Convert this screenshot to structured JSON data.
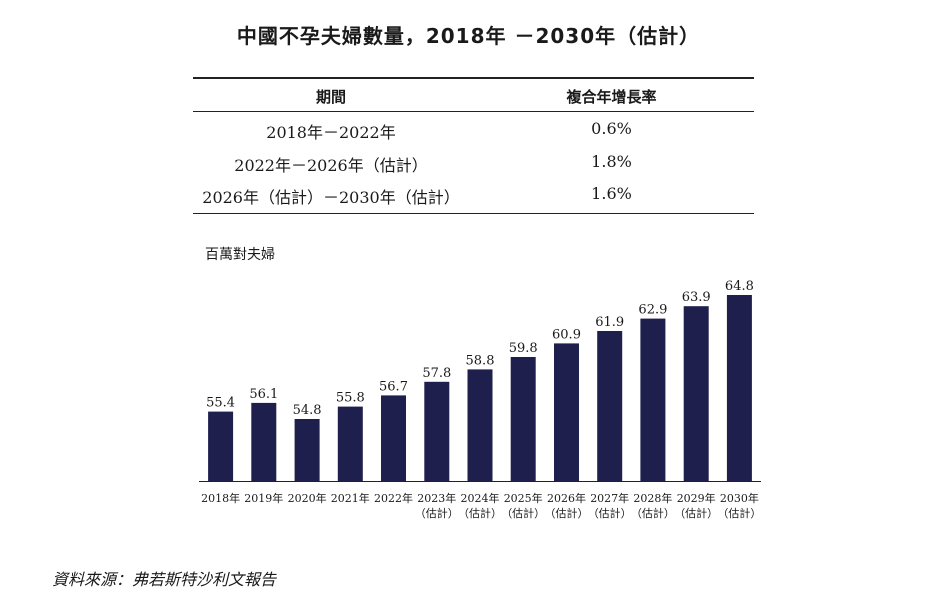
{
  "title": "中國不孕夫婦數量，2018年 －2030年（估計）",
  "cagr_table": {
    "headers": {
      "period": "期間",
      "rate": "複合年增長率"
    },
    "rows": [
      {
        "period": "2018年－2022年",
        "rate": "0.6%"
      },
      {
        "period": "2022年－2026年（估計）",
        "rate": "1.8%"
      },
      {
        "period": "2026年（估計）－2030年（估計）",
        "rate": "1.6%"
      }
    ]
  },
  "chart_data": {
    "type": "bar",
    "ylabel": "百萬對夫婦",
    "categories": [
      [
        "2018年"
      ],
      [
        "2019年"
      ],
      [
        "2020年"
      ],
      [
        "2021年"
      ],
      [
        "2022年"
      ],
      [
        "2023年",
        "（估計）"
      ],
      [
        "2024年",
        "（估計）"
      ],
      [
        "2025年",
        "（估計）"
      ],
      [
        "2026年",
        "（估計）"
      ],
      [
        "2027年",
        "（估計）"
      ],
      [
        "2028年",
        "（估計）"
      ],
      [
        "2029年",
        "（估計）"
      ],
      [
        "2030年",
        "（估計）"
      ]
    ],
    "values": [
      55.4,
      56.1,
      54.8,
      55.8,
      56.7,
      57.8,
      58.8,
      59.8,
      60.9,
      61.9,
      62.9,
      63.9,
      64.8
    ],
    "value_labels": [
      "55.4",
      "56.1",
      "54.8",
      "55.8",
      "56.7",
      "57.8",
      "58.8",
      "59.8",
      "60.9",
      "61.9",
      "62.9",
      "63.9",
      "64.8"
    ],
    "bar_color": "#1f1f4d",
    "grid": false
  },
  "source": "資料來源：弗若斯特沙利文報告"
}
